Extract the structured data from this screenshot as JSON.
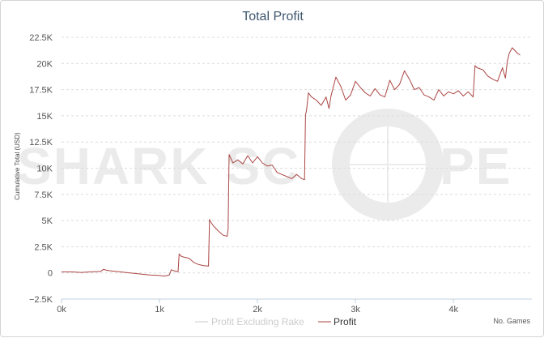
{
  "chart_data": {
    "type": "line",
    "title": "Total Profit",
    "xlabel": "No. Games",
    "ylabel": "Cumulative Total (USD)",
    "xlim": [
      0,
      4800
    ],
    "ylim": [
      -2500,
      22500
    ],
    "x_ticks": [
      0,
      1000,
      2000,
      3000,
      4000
    ],
    "x_tick_labels": [
      "0k",
      "1k",
      "2k",
      "3k",
      "4k"
    ],
    "y_ticks": [
      -2500,
      0,
      2500,
      5000,
      7500,
      10000,
      12500,
      15000,
      17500,
      20000,
      22500
    ],
    "y_tick_labels": [
      "−2.5K",
      "0",
      "2.5K",
      "5K",
      "7.5K",
      "10K",
      "12.5K",
      "15K",
      "17.5K",
      "20K",
      "22.5K"
    ],
    "grid": true,
    "legend": "bottom-center",
    "watermark": "SHARKSCOPE",
    "series": [
      {
        "name": "Profit Excluding Rake",
        "color": "#cccccc",
        "visible": false,
        "x": [],
        "y": []
      },
      {
        "name": "Profit",
        "color": "#aa4643",
        "visible": true,
        "x": [
          0,
          100,
          200,
          300,
          400,
          430,
          460,
          500,
          600,
          700,
          800,
          900,
          1000,
          1050,
          1100,
          1120,
          1150,
          1190,
          1200,
          1220,
          1250,
          1300,
          1350,
          1400,
          1450,
          1500,
          1510,
          1520,
          1550,
          1600,
          1650,
          1690,
          1700,
          1710,
          1750,
          1800,
          1850,
          1900,
          1950,
          2000,
          2050,
          2100,
          2150,
          2200,
          2250,
          2300,
          2350,
          2400,
          2450,
          2480,
          2490,
          2500,
          2520,
          2550,
          2600,
          2650,
          2700,
          2730,
          2750,
          2800,
          2850,
          2900,
          2950,
          3000,
          3050,
          3100,
          3150,
          3200,
          3250,
          3300,
          3350,
          3400,
          3450,
          3500,
          3550,
          3600,
          3650,
          3700,
          3750,
          3800,
          3850,
          3900,
          3950,
          4000,
          4050,
          4100,
          4150,
          4200,
          4220,
          4240,
          4300,
          4350,
          4400,
          4450,
          4500,
          4530,
          4550,
          4570,
          4600,
          4650,
          4680
        ],
        "y": [
          100,
          100,
          50,
          100,
          150,
          350,
          250,
          200,
          100,
          0,
          -100,
          -200,
          -250,
          -300,
          -200,
          300,
          200,
          100,
          1800,
          1600,
          1500,
          1400,
          1000,
          800,
          700,
          650,
          5100,
          4900,
          4500,
          4000,
          3600,
          3500,
          4200,
          11300,
          10500,
          10800,
          10400,
          11200,
          10500,
          11100,
          10500,
          10200,
          10300,
          9600,
          9400,
          9200,
          9000,
          9400,
          9000,
          8900,
          15100,
          15500,
          17200,
          16800,
          16500,
          16000,
          16800,
          15700,
          16900,
          18700,
          17800,
          16500,
          17000,
          18300,
          17700,
          17200,
          16900,
          17600,
          17000,
          16800,
          18400,
          17500,
          18000,
          19300,
          18500,
          17500,
          17700,
          17000,
          16800,
          16500,
          17500,
          16900,
          17300,
          17100,
          17400,
          16900,
          17300,
          16800,
          19800,
          19600,
          19400,
          18800,
          18500,
          18300,
          19600,
          18600,
          20200,
          21000,
          21500,
          21000,
          20800
        ]
      }
    ]
  }
}
